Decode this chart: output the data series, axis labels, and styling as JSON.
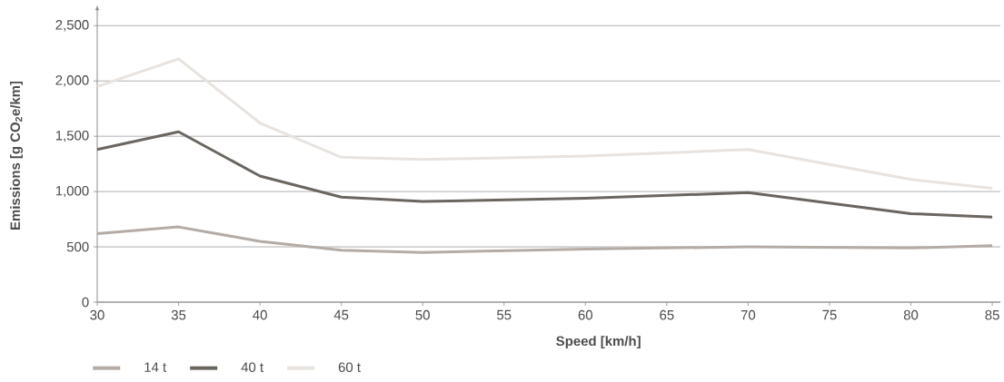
{
  "chart_data": {
    "type": "line",
    "xlabel": "Speed [km/h]",
    "ylabel": "Emissions [g CO$_{2}$e/km]",
    "x": [
      30,
      35,
      40,
      45,
      50,
      60,
      70,
      80,
      85
    ],
    "series": [
      {
        "name": "14 t",
        "color": "#b4aba5",
        "values": [
          620,
          680,
          550,
          470,
          450,
          480,
          500,
          490,
          510
        ]
      },
      {
        "name": "40 t",
        "color": "#6b6560",
        "values": [
          1380,
          1540,
          1140,
          950,
          910,
          940,
          990,
          800,
          770
        ]
      },
      {
        "name": "60 t",
        "color": "#e8e3df",
        "values": [
          1950,
          2200,
          1620,
          1310,
          1290,
          1320,
          1380,
          1110,
          1030
        ]
      }
    ],
    "xlim": [
      30,
      85.5
    ],
    "ylim": [
      0,
      2650
    ],
    "xticks": [
      30,
      35,
      40,
      45,
      50,
      55,
      60,
      65,
      70,
      75,
      80,
      85
    ],
    "yticks": [
      0,
      500,
      {
        "value": 1000,
        "label": "1,000"
      },
      {
        "value": 1500,
        "label": "1,500"
      },
      {
        "value": 2000,
        "label": "2,000"
      },
      {
        "value": 2500,
        "label": "2,500"
      }
    ],
    "grid": "y",
    "legend": "bottom left",
    "marker": "none",
    "line_style": "solid"
  }
}
